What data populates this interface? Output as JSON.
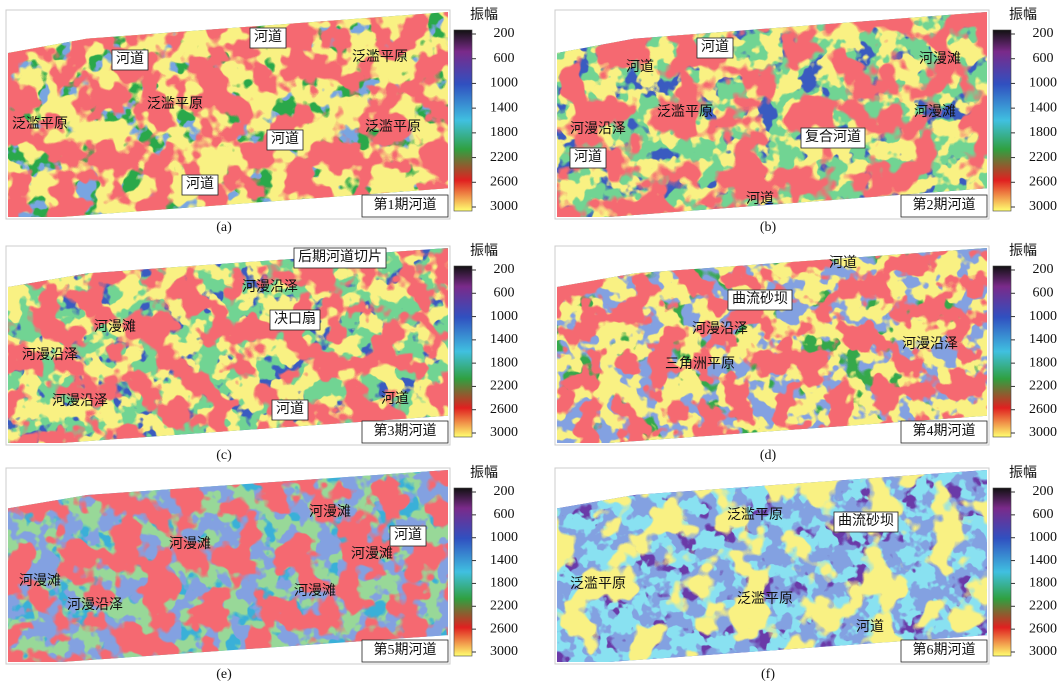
{
  "panels": [
    {
      "caption": "(a)",
      "period": "第1期河道",
      "colorbar": {
        "title": "振幅",
        "ticks": [
          200,
          600,
          1000,
          1400,
          1800,
          2200,
          2600,
          3000
        ]
      },
      "annotations": [
        {
          "text": "河道",
          "boxed": true
        },
        {
          "text": "河道",
          "boxed": true
        },
        {
          "text": "泛滥平原",
          "boxed": false
        },
        {
          "text": "泛滥平原",
          "boxed": false
        },
        {
          "text": "泛滥平原",
          "boxed": false
        },
        {
          "text": "河道",
          "boxed": true
        },
        {
          "text": "泛滥平原",
          "boxed": false
        },
        {
          "text": "河道",
          "boxed": true
        }
      ]
    },
    {
      "caption": "(b)",
      "period": "第2期河道",
      "colorbar": {
        "title": "振幅",
        "ticks": [
          200,
          600,
          1000,
          1400,
          1800,
          2200,
          2600,
          3000
        ]
      },
      "annotations": [
        {
          "text": "河道",
          "boxed": true
        },
        {
          "text": "河道",
          "boxed": false
        },
        {
          "text": "河漫滩",
          "boxed": false
        },
        {
          "text": "泛滥平原",
          "boxed": false
        },
        {
          "text": "河漫沿泽",
          "boxed": false
        },
        {
          "text": "河漫滩",
          "boxed": false
        },
        {
          "text": "复合河道",
          "boxed": true
        },
        {
          "text": "河道",
          "boxed": true
        },
        {
          "text": "河道",
          "boxed": false
        }
      ]
    },
    {
      "caption": "(c)",
      "period": "第3期河道",
      "colorbar": {
        "title": "振幅",
        "ticks": [
          200,
          600,
          1000,
          1400,
          1800,
          2200,
          2600,
          3000
        ]
      },
      "annotations": [
        {
          "text": "后期河道切片",
          "boxed": true
        },
        {
          "text": "河漫沿泽",
          "boxed": false
        },
        {
          "text": "决口扇",
          "boxed": true
        },
        {
          "text": "河漫滩",
          "boxed": false
        },
        {
          "text": "河漫沿泽",
          "boxed": false
        },
        {
          "text": "河漫沿泽",
          "boxed": false
        },
        {
          "text": "河道",
          "boxed": true
        },
        {
          "text": "河道",
          "boxed": false
        }
      ]
    },
    {
      "caption": "(d)",
      "period": "第4期河道",
      "colorbar": {
        "title": "振幅",
        "ticks": [
          200,
          600,
          1000,
          1400,
          1800,
          2200,
          2600,
          3000
        ]
      },
      "annotations": [
        {
          "text": "河道",
          "boxed": false
        },
        {
          "text": "曲流砂坝",
          "boxed": true
        },
        {
          "text": "河漫沿泽",
          "boxed": false
        },
        {
          "text": "河漫沿泽",
          "boxed": false
        },
        {
          "text": "三角洲平原",
          "boxed": false
        }
      ]
    },
    {
      "caption": "(e)",
      "period": "第5期河道",
      "colorbar": {
        "title": "振幅",
        "ticks": [
          200,
          600,
          1000,
          1400,
          1800,
          2200,
          2600,
          3000
        ]
      },
      "annotations": [
        {
          "text": "河漫滩",
          "boxed": false
        },
        {
          "text": "河道",
          "boxed": true
        },
        {
          "text": "河漫滩",
          "boxed": false
        },
        {
          "text": "河漫滩",
          "boxed": false
        },
        {
          "text": "河漫滩",
          "boxed": false
        },
        {
          "text": "河漫沿泽",
          "boxed": false
        },
        {
          "text": "河漫滩",
          "boxed": false
        }
      ]
    },
    {
      "caption": "(f)",
      "period": "第6期河道",
      "colorbar": {
        "title": "振幅",
        "ticks": [
          200,
          600,
          1000,
          1400,
          1800,
          2200,
          2600,
          3000
        ]
      },
      "annotations": [
        {
          "text": "泛滥平原",
          "boxed": false
        },
        {
          "text": "曲流砂坝",
          "boxed": true
        },
        {
          "text": "泛滥平原",
          "boxed": false
        },
        {
          "text": "泛滥平原",
          "boxed": false
        },
        {
          "text": "河道",
          "boxed": false
        }
      ]
    }
  ]
}
